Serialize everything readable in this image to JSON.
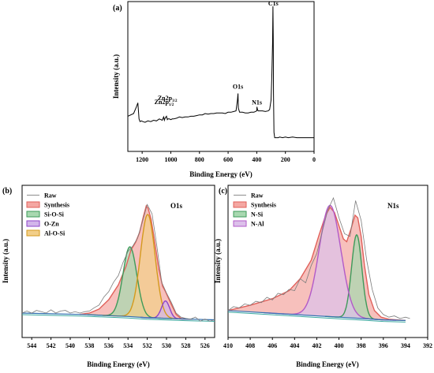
{
  "chart_data": [
    {
      "panel_label": "(a)",
      "type": "line",
      "xlabel": "Binding Energy (eV)",
      "ylabel": "Intensity (a.u.)",
      "xlim": [
        1300,
        0
      ],
      "x_ticks": [
        "1200",
        "1000",
        "800",
        "600",
        "400",
        "200",
        "0"
      ],
      "x_tick_values": [
        1200,
        1000,
        800,
        600,
        400,
        200,
        0
      ],
      "y_unit": "relative intensity 0-1",
      "series": [
        {
          "color": "#000000",
          "x": [
            1300,
            1260,
            1240,
            1230,
            1222,
            1215,
            1205,
            1195,
            1180,
            1160,
            1140,
            1120,
            1100,
            1080,
            1060,
            1050,
            1045,
            1040,
            1030,
            1024,
            1020,
            1010,
            1000,
            990,
            980,
            960,
            940,
            920,
            900,
            880,
            860,
            840,
            820,
            800,
            780,
            760,
            740,
            720,
            700,
            680,
            660,
            640,
            620,
            600,
            580,
            560,
            545,
            540,
            535,
            531,
            528,
            520,
            510,
            500,
            480,
            460,
            440,
            420,
            410,
            400,
            399,
            395,
            390,
            380,
            360,
            340,
            320,
            310,
            300,
            295,
            290,
            287,
            285,
            283,
            280,
            275,
            270,
            260,
            250,
            240,
            220,
            200,
            180,
            150,
            120,
            90,
            60,
            30,
            0
          ],
          "y": [
            0.18,
            0.2,
            0.25,
            0.28,
            0.16,
            0.14,
            0.145,
            0.14,
            0.135,
            0.145,
            0.14,
            0.15,
            0.145,
            0.16,
            0.15,
            0.175,
            0.15,
            0.165,
            0.18,
            0.155,
            0.16,
            0.16,
            0.155,
            0.16,
            0.16,
            0.165,
            0.175,
            0.17,
            0.175,
            0.175,
            0.18,
            0.18,
            0.185,
            0.19,
            0.19,
            0.2,
            0.195,
            0.2,
            0.2,
            0.205,
            0.205,
            0.205,
            0.2,
            0.21,
            0.21,
            0.215,
            0.22,
            0.26,
            0.3,
            0.35,
            0.24,
            0.21,
            0.21,
            0.21,
            0.205,
            0.205,
            0.21,
            0.21,
            0.215,
            0.22,
            0.25,
            0.23,
            0.22,
            0.22,
            0.22,
            0.215,
            0.22,
            0.23,
            0.3,
            0.46,
            0.72,
            1.0,
            0.75,
            0.35,
            0.06,
            0.02,
            0.02,
            0.02,
            0.02,
            0.025,
            0.02,
            0.025,
            0.02,
            0.025,
            0.02,
            0.02,
            0.02,
            0.02,
            0.02
          ]
        }
      ],
      "annotations": [
        {
          "main": "C1s",
          "sub": "",
          "sub_after": "",
          "x": 285
        },
        {
          "main": "O1s",
          "sub": "",
          "sub_after": "",
          "x": 531
        },
        {
          "main": "N1s",
          "sub": "",
          "sub_after": "",
          "x": 399
        },
        {
          "main": "Zn2p",
          "sub": "1/2",
          "sub_after": "",
          "x": 1045
        },
        {
          "main": "Zn2p",
          "sub": "3/2",
          "sub_after": "",
          "x": 1022
        }
      ]
    },
    {
      "panel_label": "(b)",
      "type": "line",
      "title": "O1s",
      "xlabel": "Binding Energy (eV)",
      "ylabel": "Intensity (a.u.)",
      "xlim": [
        545,
        525
      ],
      "x_ticks": [
        "544",
        "542",
        "540",
        "538",
        "536",
        "534",
        "532",
        "530",
        "528",
        "526"
      ],
      "x_tick_values": [
        544,
        542,
        540,
        538,
        536,
        534,
        532,
        530,
        528,
        526
      ],
      "y_unit": "relative intensity 0-1",
      "legend": [
        {
          "name": "Raw",
          "color": "#9a9a9a",
          "fill": ""
        },
        {
          "name": "Synthesis",
          "color": "#e0605a",
          "fill": "#f4a7a2"
        },
        {
          "name": "Si-O-Si",
          "color": "#3e9a5a",
          "fill": "#a8d8b0"
        },
        {
          "name": "O-Zn",
          "color": "#8e44c8",
          "fill": "#d2b6ea"
        },
        {
          "name": "Al-O-Si",
          "color": "#d49a1c",
          "fill": "#f2cf8a"
        }
      ],
      "legend_position": "top-left",
      "background": {
        "x": [
          545,
          539,
          534,
          532,
          530,
          528,
          525
        ],
        "y": [
          0.1,
          0.09,
          0.075,
          0.065,
          0.06,
          0.055,
          0.05
        ]
      },
      "components": [
        {
          "name": "Synthesis",
          "type": "envelope",
          "points": [
            [
              539,
              0.09
            ],
            [
              538,
              0.1
            ],
            [
              537,
              0.13
            ],
            [
              536,
              0.2
            ],
            [
              535,
              0.31
            ],
            [
              534.2,
              0.45
            ],
            [
              533.7,
              0.57
            ],
            [
              533.2,
              0.63
            ],
            [
              532.8,
              0.7
            ],
            [
              532.4,
              0.82
            ],
            [
              532.1,
              0.9
            ],
            [
              531.9,
              0.88
            ],
            [
              531.6,
              0.8
            ],
            [
              531.2,
              0.62
            ],
            [
              530.8,
              0.43
            ],
            [
              530.4,
              0.3
            ],
            [
              530.1,
              0.26
            ],
            [
              529.6,
              0.18
            ],
            [
              529,
              0.09
            ],
            [
              528.5,
              0.06
            ],
            [
              528,
              0.055
            ]
          ]
        },
        {
          "name": "Si-O-Si",
          "type": "peak",
          "center": 533.8,
          "height": 0.52,
          "fwhm": 1.7
        },
        {
          "name": "Al-O-Si",
          "type": "peak",
          "center": 531.95,
          "height": 0.77,
          "fwhm": 1.8
        },
        {
          "name": "O-Zn",
          "type": "peak",
          "center": 530.1,
          "height": 0.13,
          "fwhm": 1.0
        }
      ],
      "raw": {
        "x": [
          545,
          544.5,
          544,
          543.5,
          543,
          542.5,
          542,
          541.5,
          541,
          540.5,
          540,
          539.5,
          539,
          538.5,
          538,
          537.5,
          537,
          536.5,
          536,
          535.5,
          535,
          534.5,
          534,
          533.5,
          533,
          532.5,
          532,
          531.5,
          531,
          530.5,
          530,
          529.5,
          529,
          528.5,
          528,
          527.5,
          527,
          526.5,
          526,
          525.5,
          525
        ],
        "y": [
          0.1,
          0.115,
          0.1,
          0.12,
          0.11,
          0.1,
          0.125,
          0.1,
          0.115,
          0.12,
          0.1,
          0.11,
          0.1,
          0.11,
          0.115,
          0.14,
          0.16,
          0.22,
          0.26,
          0.33,
          0.38,
          0.48,
          0.56,
          0.6,
          0.66,
          0.78,
          0.91,
          0.84,
          0.6,
          0.33,
          0.25,
          0.18,
          0.1,
          0.07,
          0.06,
          0.055,
          0.07,
          0.04,
          0.055,
          0.04,
          0.05
        ]
      }
    },
    {
      "panel_label": "(c)",
      "type": "line",
      "title": "N1s",
      "xlabel": "Binding Energy (eV)",
      "ylabel": "Intensity (a.u.)",
      "xlim": [
        410,
        392
      ],
      "x_ticks": [
        "410",
        "408",
        "406",
        "404",
        "402",
        "400",
        "398",
        "396",
        "394",
        "392"
      ],
      "x_tick_values": [
        410,
        408,
        406,
        404,
        402,
        400,
        398,
        396,
        394,
        392
      ],
      "y_unit": "relative intensity 0-1",
      "legend": [
        {
          "name": "Raw",
          "color": "#9a9a9a",
          "fill": ""
        },
        {
          "name": "Synthesis",
          "color": "#e0605a",
          "fill": "#f4a7a2"
        },
        {
          "name": "N-Si",
          "color": "#3e9a5a",
          "fill": "#a8d8b0"
        },
        {
          "name": "N-Al",
          "color": "#b25ac8",
          "fill": "#dcc0ea"
        }
      ],
      "legend_position": "top-left",
      "background": {
        "x": [
          410,
          404,
          400,
          398,
          396,
          394
        ],
        "y": [
          0.12,
          0.09,
          0.07,
          0.06,
          0.05,
          0.045
        ]
      },
      "components": [
        {
          "name": "Synthesis",
          "type": "envelope",
          "points": [
            [
              410,
              0.12
            ],
            [
              408,
              0.16
            ],
            [
              406,
              0.21
            ],
            [
              404.5,
              0.27
            ],
            [
              403.5,
              0.36
            ],
            [
              402.5,
              0.5
            ],
            [
              401.8,
              0.69
            ],
            [
              401.2,
              0.84
            ],
            [
              400.8,
              0.9
            ],
            [
              400.4,
              0.86
            ],
            [
              400,
              0.76
            ],
            [
              399.6,
              0.66
            ],
            [
              399.3,
              0.64
            ],
            [
              398.9,
              0.74
            ],
            [
              398.55,
              0.84
            ],
            [
              398.3,
              0.82
            ],
            [
              398,
              0.68
            ],
            [
              397.7,
              0.46
            ],
            [
              397.3,
              0.24
            ],
            [
              396.8,
              0.12
            ],
            [
              396.2,
              0.07
            ],
            [
              395.5,
              0.055
            ],
            [
              394,
              0.045
            ]
          ]
        },
        {
          "name": "N-Si",
          "type": "peak",
          "center": 398.4,
          "height": 0.63,
          "fwhm": 1.1
        },
        {
          "name": "N-Al",
          "type": "peak",
          "center": 400.8,
          "height": 0.84,
          "fwhm": 2.3
        }
      ],
      "raw": {
        "x": [
          410,
          409.5,
          409,
          408.5,
          408,
          407.5,
          407,
          406.5,
          406,
          405.5,
          405,
          404.5,
          404,
          403.5,
          403,
          402.5,
          402,
          401.5,
          401,
          400.5,
          400,
          399.5,
          399,
          398.5,
          398,
          397.5,
          397,
          396.5,
          396,
          395.5,
          395,
          394.5,
          394,
          393.6
        ],
        "y": [
          0.12,
          0.15,
          0.14,
          0.17,
          0.16,
          0.19,
          0.18,
          0.22,
          0.2,
          0.25,
          0.24,
          0.28,
          0.27,
          0.36,
          0.33,
          0.46,
          0.55,
          0.72,
          0.88,
          0.97,
          0.82,
          0.7,
          0.68,
          0.95,
          0.8,
          0.5,
          0.28,
          0.14,
          0.09,
          0.07,
          0.08,
          0.06,
          0.07,
          0.06
        ]
      }
    }
  ]
}
